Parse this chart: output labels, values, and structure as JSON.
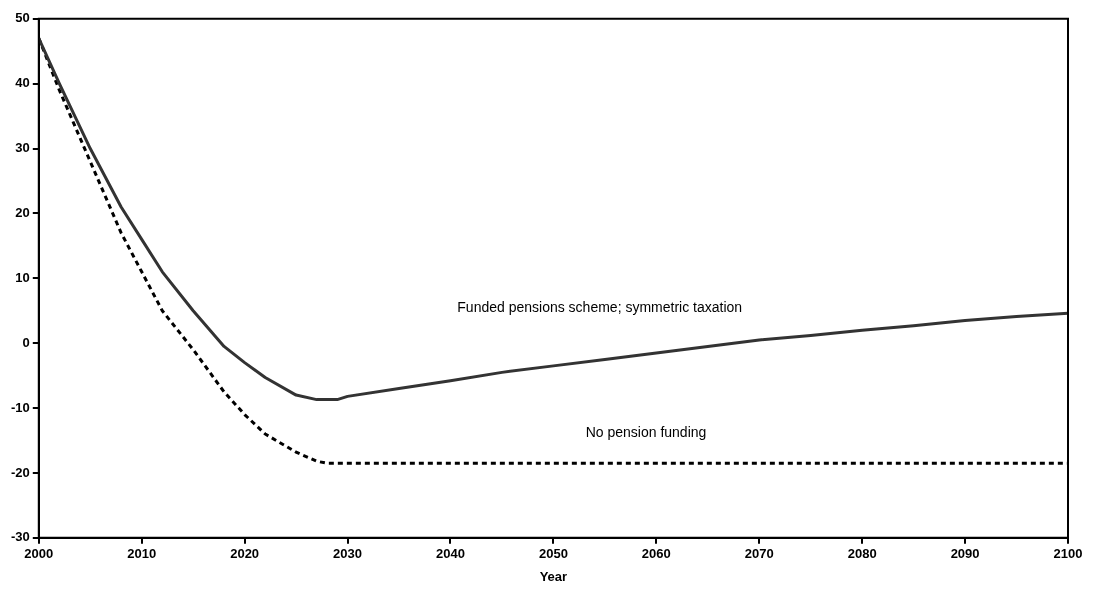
{
  "chart_data": {
    "type": "line",
    "xlabel": "Year",
    "xlim": [
      2000,
      2100
    ],
    "xticks": [
      2000,
      2010,
      2020,
      2030,
      2040,
      2050,
      2060,
      2070,
      2080,
      2090,
      2100
    ],
    "ylim": [
      -30,
      50
    ],
    "yticks": [
      -30,
      -20,
      -10,
      0,
      10,
      20,
      30,
      40,
      50
    ],
    "grid": false,
    "legend": false,
    "marker": "none",
    "series": [
      {
        "name": "Funded pensions scheme; symmetric taxation",
        "color": "#333333",
        "line_style": "solid",
        "x": [
          2000,
          2002,
          2005,
          2008,
          2010,
          2012,
          2015,
          2018,
          2020,
          2022,
          2025,
          2027,
          2029,
          2030,
          2035,
          2040,
          2045,
          2050,
          2055,
          2060,
          2065,
          2070,
          2075,
          2080,
          2085,
          2090,
          2095,
          2100
        ],
        "values": [
          47,
          40,
          30,
          21,
          16,
          11,
          5,
          -0.5,
          -3,
          -5.3,
          -8,
          -8.7,
          -8.7,
          -8.2,
          -7,
          -5.8,
          -4.5,
          -3.5,
          -2.5,
          -1.5,
          -0.5,
          0.5,
          1.2,
          2,
          2.7,
          3.5,
          4.1,
          4.6
        ]
      },
      {
        "name": "No pension funding",
        "color": "#000000",
        "line_style": "dashed",
        "x": [
          2000,
          2002,
          2005,
          2008,
          2010,
          2012,
          2015,
          2018,
          2020,
          2022,
          2025,
          2027,
          2028,
          2100
        ],
        "values": [
          47,
          39,
          28,
          17,
          11,
          5,
          -1,
          -7.5,
          -11,
          -14,
          -16.8,
          -18.2,
          -18.5,
          -18.5
        ]
      }
    ]
  }
}
